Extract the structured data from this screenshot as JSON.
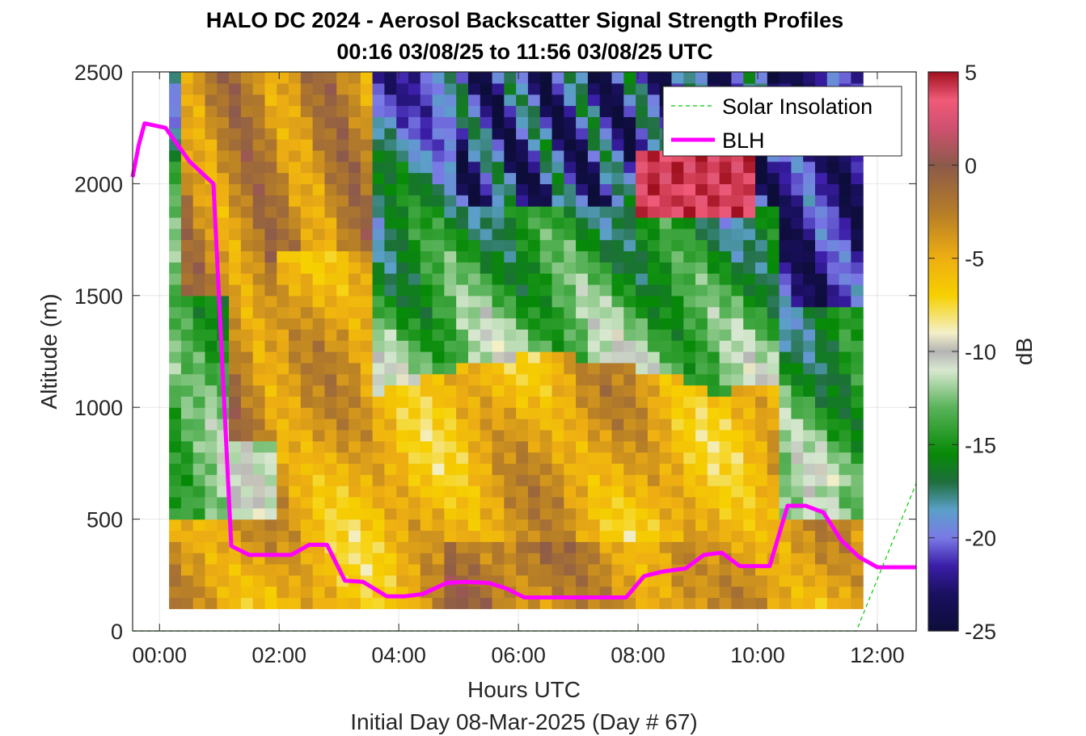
{
  "chart_data": {
    "type": "heatmap",
    "title": "HALO DC 2024 - Aerosol Backscatter Signal Strength Profiles",
    "subtitle": "00:16 03/08/25 to 11:56 03/08/25  UTC",
    "xlabel": "Hours UTC",
    "xlabel2": "Initial Day 08-Mar-2025 (Day # 67)",
    "ylabel": "Altitude (m)",
    "colorbar_label": "dB",
    "xlim": [
      -0.45,
      12.65
    ],
    "ylim": [
      0,
      2500
    ],
    "x_ticks": [
      0,
      2,
      4,
      6,
      8,
      10,
      12
    ],
    "x_tick_labels": [
      "00:00",
      "02:00",
      "04:00",
      "06:00",
      "08:00",
      "10:00",
      "12:00"
    ],
    "y_ticks": [
      0,
      500,
      1000,
      1500,
      2000,
      2500
    ],
    "y_tick_labels": [
      "0",
      "500",
      "1000",
      "1500",
      "2000",
      "2500"
    ],
    "clim": [
      -25,
      5
    ],
    "cbar_ticks": [
      5,
      0,
      -5,
      -10,
      -15,
      -20,
      -25
    ],
    "cbar_tick_labels": [
      "5",
      "0",
      "-5",
      "-10",
      "-15",
      "-20",
      "-25"
    ],
    "grid": true,
    "legend_position": "top-right",
    "legend": [
      "Solar Insolation",
      "BLH"
    ],
    "colormap": [
      [
        -25,
        "#0d0d3a"
      ],
      [
        -23,
        "#1a1060"
      ],
      [
        -21.5,
        "#3b1ea8"
      ],
      [
        -20,
        "#7a7ae6"
      ],
      [
        -18.5,
        "#5aa0c8"
      ],
      [
        -17,
        "#1e6e3c"
      ],
      [
        -15.5,
        "#068a06"
      ],
      [
        -13,
        "#5ab35a"
      ],
      [
        -11,
        "#d8e8d0"
      ],
      [
        -10,
        "#b4b4b4"
      ],
      [
        -9,
        "#f4f0c8"
      ],
      [
        -7,
        "#f6d000"
      ],
      [
        -5,
        "#eeae12"
      ],
      [
        -2.5,
        "#b47c28"
      ],
      [
        0,
        "#8c5a4a"
      ],
      [
        2,
        "#d05070"
      ],
      [
        3.5,
        "#f05a78"
      ],
      [
        5,
        "#a0101e"
      ]
    ],
    "heatmap": {
      "x_start": 0.16,
      "x_step": 0.2,
      "x_count": 58,
      "y_start": 100,
      "y_step": 50,
      "y_count": 48,
      "value_range_db": [
        -25,
        5
      ]
    },
    "series": [
      {
        "name": "BLH",
        "color": "#ff00ff",
        "x": [
          -0.45,
          -0.35,
          -0.25,
          0.1,
          0.5,
          0.7,
          0.9,
          1.2,
          1.5,
          1.8,
          2.2,
          2.5,
          2.8,
          3.1,
          3.4,
          3.8,
          4.1,
          4.4,
          4.8,
          5.1,
          5.5,
          5.8,
          6.1,
          6.5,
          6.8,
          7.1,
          7.5,
          7.8,
          8.1,
          8.4,
          8.8,
          9.1,
          9.4,
          9.7,
          10.0,
          10.2,
          10.5,
          10.8,
          11.1,
          11.4,
          11.7,
          12.0,
          12.35,
          12.65
        ],
        "y": [
          2030,
          2170,
          2270,
          2250,
          2100,
          2050,
          2000,
          380,
          340,
          340,
          340,
          385,
          385,
          225,
          220,
          155,
          155,
          165,
          215,
          220,
          215,
          190,
          150,
          150,
          150,
          150,
          150,
          150,
          245,
          265,
          280,
          340,
          350,
          290,
          290,
          290,
          560,
          560,
          530,
          405,
          330,
          285,
          285,
          285
        ]
      },
      {
        "name": "Solar Insolation",
        "color": "#00cc00",
        "x": [
          -0.45,
          11.65,
          12.65
        ],
        "y": [
          0,
          0,
          660
        ]
      }
    ]
  }
}
